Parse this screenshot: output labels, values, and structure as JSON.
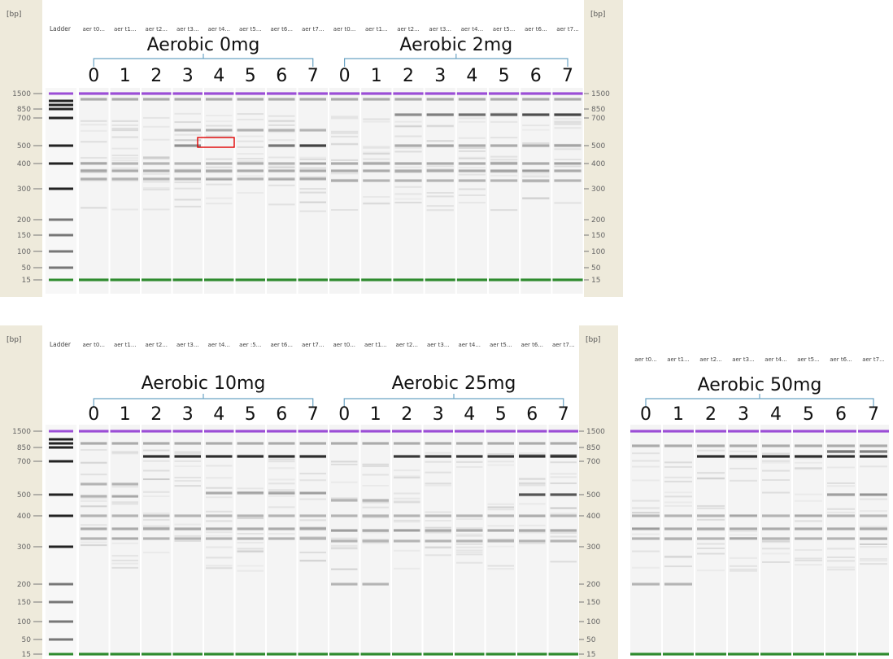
{
  "units_label": "[bp]",
  "ladder_label": "Ladder",
  "ladder_sizes": [
    "1500",
    "850",
    "700",
    "500",
    "400",
    "300",
    "200",
    "150",
    "100",
    "50",
    "15"
  ],
  "lane_numbers": [
    "0",
    "1",
    "2",
    "3",
    "4",
    "5",
    "6",
    "7"
  ],
  "panels": [
    {
      "id": "top",
      "groups": [
        {
          "title": "Aerobic 0mg",
          "lane_labels": [
            "aer t0...",
            "aer t1...",
            "aer t2...",
            "aer t3...",
            "aer t4...",
            "aer t5...",
            "aer t6...",
            "aer t7..."
          ]
        },
        {
          "title": "Aerobic 2mg",
          "lane_labels": [
            "aer t0...",
            "aer t1...",
            "aer t2...",
            "aer t3...",
            "aer t4...",
            "aer t5...",
            "aer t6...",
            "aer t7..."
          ]
        }
      ]
    },
    {
      "id": "bottom-left",
      "groups": [
        {
          "title": "Aerobic 10mg",
          "lane_labels": [
            "aer t0...",
            "aer t1...",
            "aer t2...",
            "aer t3...",
            "aer t4...",
            "aer :5...",
            "aer t6...",
            "aer t7..."
          ]
        },
        {
          "title": "Aerobic 25mg",
          "lane_labels": [
            "aer t0...",
            "aer t1...",
            "aer t2...",
            "aer t3...",
            "aer t4...",
            "aer t5...",
            "aer t6...",
            "aer t7..."
          ]
        }
      ]
    },
    {
      "id": "bottom-right",
      "groups": [
        {
          "title": "Aerobic 50mg",
          "lane_labels": [
            "aer t0...",
            "aer t1...",
            "aer t2...",
            "aer t3...",
            "aer t4...",
            "aer t5...",
            "aer t6...",
            "aer t7..."
          ]
        }
      ]
    }
  ],
  "colors": {
    "upper_marker": "#9b4dd6",
    "lower_marker": "#2e8b2e",
    "highlight_box": "#e00000",
    "bracket": "#6aa3c4",
    "side_strip": "#eeeadb",
    "lane_bg": "#f4f4f4"
  }
}
